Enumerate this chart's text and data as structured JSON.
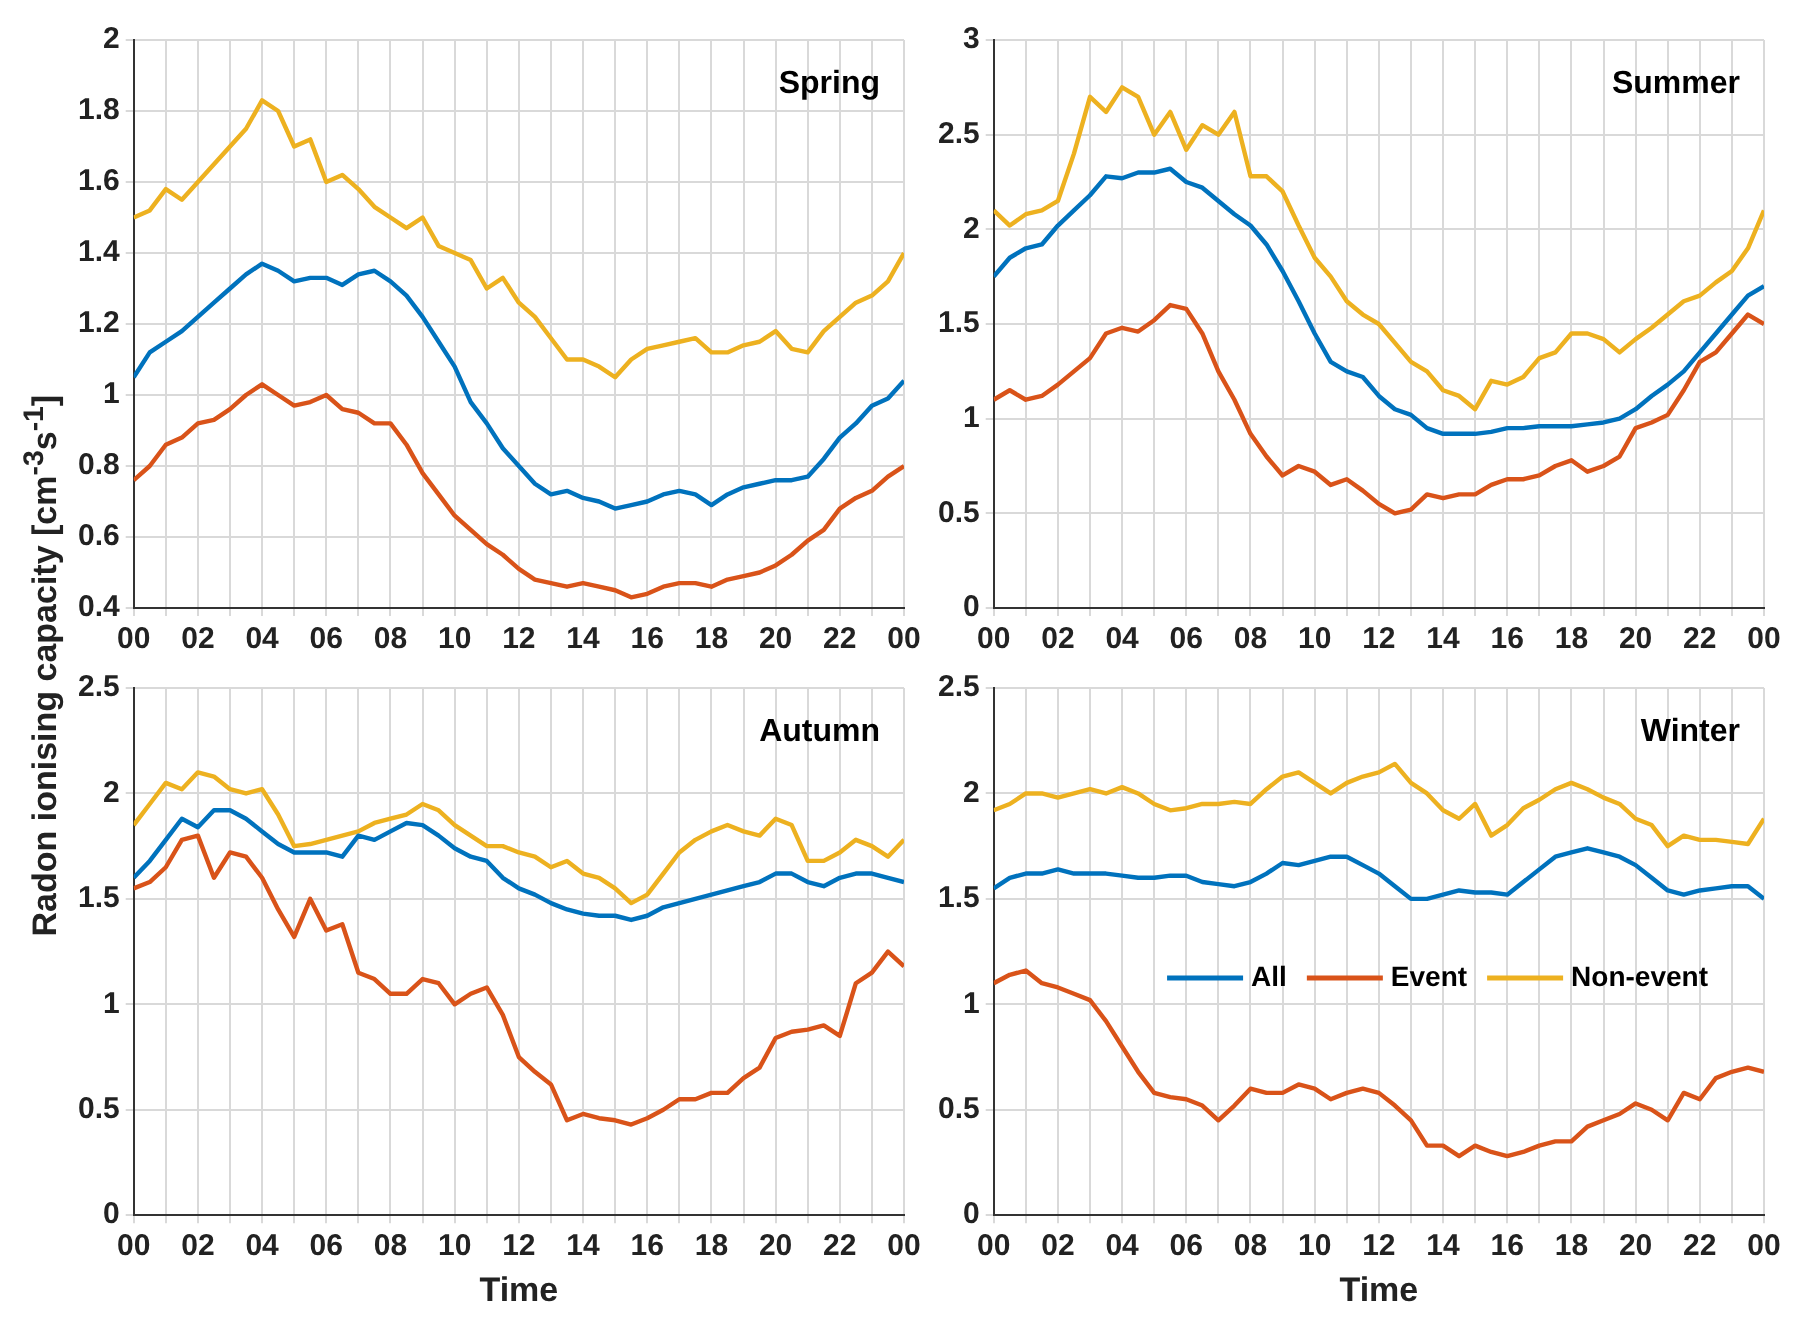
{
  "chart_data": [
    {
      "type": "line",
      "title": "Spring",
      "ylabel": "Radon ionising capacity [cm$^{-3}$s$^{-1}$]",
      "grid": true,
      "marker": "none",
      "x": [
        0,
        0.5,
        1,
        1.5,
        2,
        2.5,
        3,
        3.5,
        4,
        4.5,
        5,
        5.5,
        6,
        6.5,
        7,
        7.5,
        8,
        8.5,
        9,
        9.5,
        10,
        10.5,
        11,
        11.5,
        12,
        12.5,
        13,
        13.5,
        14,
        14.5,
        15,
        15.5,
        16,
        16.5,
        17,
        17.5,
        18,
        18.5,
        19,
        19.5,
        20,
        20.5,
        21,
        21.5,
        22,
        22.5,
        23,
        23.5,
        24
      ],
      "xlim": [
        0,
        24
      ],
      "xticks": [
        {
          "value": 0,
          "label": "00"
        },
        {
          "value": 1,
          "label": null
        },
        {
          "value": 2,
          "label": "02"
        },
        {
          "value": 3,
          "label": null
        },
        {
          "value": 4,
          "label": "04"
        },
        {
          "value": 5,
          "label": null
        },
        {
          "value": 6,
          "label": "06"
        },
        {
          "value": 7,
          "label": null
        },
        {
          "value": 8,
          "label": "08"
        },
        {
          "value": 9,
          "label": null
        },
        {
          "value": 10,
          "label": "10"
        },
        {
          "value": 11,
          "label": null
        },
        {
          "value": 12,
          "label": "12"
        },
        {
          "value": 13,
          "label": null
        },
        {
          "value": 14,
          "label": "14"
        },
        {
          "value": 15,
          "label": null
        },
        {
          "value": 16,
          "label": "16"
        },
        {
          "value": 17,
          "label": null
        },
        {
          "value": 18,
          "label": "18"
        },
        {
          "value": 19,
          "label": null
        },
        {
          "value": 20,
          "label": "20"
        },
        {
          "value": 21,
          "label": null
        },
        {
          "value": 22,
          "label": "22"
        },
        {
          "value": 23,
          "label": null
        },
        {
          "value": 24,
          "label": "00"
        }
      ],
      "ylim": [
        0.4,
        2
      ],
      "yticks": [
        0.4,
        0.6,
        0.8,
        1,
        1.2,
        1.4,
        1.6,
        1.8,
        2
      ],
      "series": [
        {
          "color": "#0072bd",
          "values": [
            1.05,
            1.12,
            1.15,
            1.18,
            1.22,
            1.26,
            1.3,
            1.34,
            1.37,
            1.35,
            1.32,
            1.33,
            1.33,
            1.31,
            1.34,
            1.35,
            1.32,
            1.28,
            1.22,
            1.15,
            1.08,
            0.98,
            0.92,
            0.85,
            0.8,
            0.75,
            0.72,
            0.73,
            0.71,
            0.7,
            0.68,
            0.69,
            0.7,
            0.72,
            0.73,
            0.72,
            0.69,
            0.72,
            0.74,
            0.75,
            0.76,
            0.76,
            0.77,
            0.82,
            0.88,
            0.92,
            0.97,
            0.99,
            1.04
          ]
        },
        {
          "color": "#d95319",
          "values": [
            0.76,
            0.8,
            0.86,
            0.88,
            0.92,
            0.93,
            0.96,
            1,
            1.03,
            1,
            0.97,
            0.98,
            1,
            0.96,
            0.95,
            0.92,
            0.92,
            0.86,
            0.78,
            0.72,
            0.66,
            0.62,
            0.58,
            0.55,
            0.51,
            0.48,
            0.47,
            0.46,
            0.47,
            0.46,
            0.45,
            0.43,
            0.44,
            0.46,
            0.47,
            0.47,
            0.46,
            0.48,
            0.49,
            0.5,
            0.52,
            0.55,
            0.59,
            0.62,
            0.68,
            0.71,
            0.73,
            0.77,
            0.8
          ]
        },
        {
          "color": "#edb120",
          "values": [
            1.5,
            1.52,
            1.58,
            1.55,
            1.6,
            1.65,
            1.7,
            1.75,
            1.83,
            1.8,
            1.7,
            1.72,
            1.6,
            1.62,
            1.58,
            1.53,
            1.5,
            1.47,
            1.5,
            1.42,
            1.4,
            1.38,
            1.3,
            1.33,
            1.26,
            1.22,
            1.16,
            1.1,
            1.1,
            1.08,
            1.05,
            1.1,
            1.13,
            1.14,
            1.15,
            1.16,
            1.12,
            1.12,
            1.14,
            1.15,
            1.18,
            1.13,
            1.12,
            1.18,
            1.22,
            1.26,
            1.28,
            1.32,
            1.4
          ]
        }
      ]
    },
    {
      "type": "line",
      "title": "Summer",
      "grid": true,
      "marker": "none",
      "x": [
        0,
        0.5,
        1,
        1.5,
        2,
        2.5,
        3,
        3.5,
        4,
        4.5,
        5,
        5.5,
        6,
        6.5,
        7,
        7.5,
        8,
        8.5,
        9,
        9.5,
        10,
        10.5,
        11,
        11.5,
        12,
        12.5,
        13,
        13.5,
        14,
        14.5,
        15,
        15.5,
        16,
        16.5,
        17,
        17.5,
        18,
        18.5,
        19,
        19.5,
        20,
        20.5,
        21,
        21.5,
        22,
        22.5,
        23,
        23.5,
        24
      ],
      "xlim": [
        0,
        24
      ],
      "xticks": [
        {
          "value": 0,
          "label": "00"
        },
        {
          "value": 1,
          "label": null
        },
        {
          "value": 2,
          "label": "02"
        },
        {
          "value": 3,
          "label": null
        },
        {
          "value": 4,
          "label": "04"
        },
        {
          "value": 5,
          "label": null
        },
        {
          "value": 6,
          "label": "06"
        },
        {
          "value": 7,
          "label": null
        },
        {
          "value": 8,
          "label": "08"
        },
        {
          "value": 9,
          "label": null
        },
        {
          "value": 10,
          "label": "10"
        },
        {
          "value": 11,
          "label": null
        },
        {
          "value": 12,
          "label": "12"
        },
        {
          "value": 13,
          "label": null
        },
        {
          "value": 14,
          "label": "14"
        },
        {
          "value": 15,
          "label": null
        },
        {
          "value": 16,
          "label": "16"
        },
        {
          "value": 17,
          "label": null
        },
        {
          "value": 18,
          "label": "18"
        },
        {
          "value": 19,
          "label": null
        },
        {
          "value": 20,
          "label": "20"
        },
        {
          "value": 21,
          "label": null
        },
        {
          "value": 22,
          "label": "22"
        },
        {
          "value": 23,
          "label": null
        },
        {
          "value": 24,
          "label": "00"
        }
      ],
      "ylim": [
        0,
        3
      ],
      "yticks": [
        0,
        0.5,
        1,
        1.5,
        2,
        2.5,
        3
      ],
      "series": [
        {
          "color": "#0072bd",
          "values": [
            1.75,
            1.85,
            1.9,
            1.92,
            2.02,
            2.1,
            2.18,
            2.28,
            2.27,
            2.3,
            2.3,
            2.32,
            2.25,
            2.22,
            2.15,
            2.08,
            2.02,
            1.92,
            1.78,
            1.62,
            1.45,
            1.3,
            1.25,
            1.22,
            1.12,
            1.05,
            1.02,
            0.95,
            0.92,
            0.92,
            0.92,
            0.93,
            0.95,
            0.95,
            0.96,
            0.96,
            0.96,
            0.97,
            0.98,
            1,
            1.05,
            1.12,
            1.18,
            1.25,
            1.35,
            1.45,
            1.55,
            1.65,
            1.7
          ]
        },
        {
          "color": "#d95319",
          "values": [
            1.1,
            1.15,
            1.1,
            1.12,
            1.18,
            1.25,
            1.32,
            1.45,
            1.48,
            1.46,
            1.52,
            1.6,
            1.58,
            1.45,
            1.25,
            1.1,
            0.92,
            0.8,
            0.7,
            0.75,
            0.72,
            0.65,
            0.68,
            0.62,
            0.55,
            0.5,
            0.52,
            0.6,
            0.58,
            0.6,
            0.6,
            0.65,
            0.68,
            0.68,
            0.7,
            0.75,
            0.78,
            0.72,
            0.75,
            0.8,
            0.95,
            0.98,
            1.02,
            1.15,
            1.3,
            1.35,
            1.45,
            1.55,
            1.5
          ]
        },
        {
          "color": "#edb120",
          "values": [
            2.1,
            2.02,
            2.08,
            2.1,
            2.15,
            2.4,
            2.7,
            2.62,
            2.75,
            2.7,
            2.5,
            2.62,
            2.42,
            2.55,
            2.5,
            2.62,
            2.28,
            2.28,
            2.2,
            2.02,
            1.85,
            1.75,
            1.62,
            1.55,
            1.5,
            1.4,
            1.3,
            1.25,
            1.15,
            1.12,
            1.05,
            1.2,
            1.18,
            1.22,
            1.32,
            1.35,
            1.45,
            1.45,
            1.42,
            1.35,
            1.42,
            1.48,
            1.55,
            1.62,
            1.65,
            1.72,
            1.78,
            1.9,
            2.1
          ]
        }
      ]
    },
    {
      "type": "line",
      "title": "Autumn",
      "xlabel": "Time",
      "grid": true,
      "marker": "none",
      "x": [
        0,
        0.5,
        1,
        1.5,
        2,
        2.5,
        3,
        3.5,
        4,
        4.5,
        5,
        5.5,
        6,
        6.5,
        7,
        7.5,
        8,
        8.5,
        9,
        9.5,
        10,
        10.5,
        11,
        11.5,
        12,
        12.5,
        13,
        13.5,
        14,
        14.5,
        15,
        15.5,
        16,
        16.5,
        17,
        17.5,
        18,
        18.5,
        19,
        19.5,
        20,
        20.5,
        21,
        21.5,
        22,
        22.5,
        23,
        23.5,
        24
      ],
      "xlim": [
        0,
        24
      ],
      "xticks": [
        {
          "value": 0,
          "label": "00"
        },
        {
          "value": 1,
          "label": null
        },
        {
          "value": 2,
          "label": "02"
        },
        {
          "value": 3,
          "label": null
        },
        {
          "value": 4,
          "label": "04"
        },
        {
          "value": 5,
          "label": null
        },
        {
          "value": 6,
          "label": "06"
        },
        {
          "value": 7,
          "label": null
        },
        {
          "value": 8,
          "label": "08"
        },
        {
          "value": 9,
          "label": null
        },
        {
          "value": 10,
          "label": "10"
        },
        {
          "value": 11,
          "label": null
        },
        {
          "value": 12,
          "label": "12"
        },
        {
          "value": 13,
          "label": null
        },
        {
          "value": 14,
          "label": "14"
        },
        {
          "value": 15,
          "label": null
        },
        {
          "value": 16,
          "label": "16"
        },
        {
          "value": 17,
          "label": null
        },
        {
          "value": 18,
          "label": "18"
        },
        {
          "value": 19,
          "label": null
        },
        {
          "value": 20,
          "label": "20"
        },
        {
          "value": 21,
          "label": null
        },
        {
          "value": 22,
          "label": "22"
        },
        {
          "value": 23,
          "label": null
        },
        {
          "value": 24,
          "label": "00"
        }
      ],
      "ylim": [
        0,
        2.5
      ],
      "yticks": [
        0,
        0.5,
        1,
        1.5,
        2,
        2.5
      ],
      "series": [
        {
          "color": "#0072bd",
          "values": [
            1.6,
            1.68,
            1.78,
            1.88,
            1.84,
            1.92,
            1.92,
            1.88,
            1.82,
            1.76,
            1.72,
            1.72,
            1.72,
            1.7,
            1.8,
            1.78,
            1.82,
            1.86,
            1.85,
            1.8,
            1.74,
            1.7,
            1.68,
            1.6,
            1.55,
            1.52,
            1.48,
            1.45,
            1.43,
            1.42,
            1.42,
            1.4,
            1.42,
            1.46,
            1.48,
            1.5,
            1.52,
            1.54,
            1.56,
            1.58,
            1.62,
            1.62,
            1.58,
            1.56,
            1.6,
            1.62,
            1.62,
            1.6,
            1.58
          ]
        },
        {
          "color": "#d95319",
          "values": [
            1.55,
            1.58,
            1.65,
            1.78,
            1.8,
            1.6,
            1.72,
            1.7,
            1.6,
            1.45,
            1.32,
            1.5,
            1.35,
            1.38,
            1.15,
            1.12,
            1.05,
            1.05,
            1.12,
            1.1,
            1,
            1.05,
            1.08,
            0.95,
            0.75,
            0.68,
            0.62,
            0.45,
            0.48,
            0.46,
            0.45,
            0.43,
            0.46,
            0.5,
            0.55,
            0.55,
            0.58,
            0.58,
            0.65,
            0.7,
            0.84,
            0.87,
            0.88,
            0.9,
            0.85,
            1.1,
            1.15,
            1.25,
            1.18
          ]
        },
        {
          "color": "#edb120",
          "values": [
            1.85,
            1.95,
            2.05,
            2.02,
            2.1,
            2.08,
            2.02,
            2,
            2.02,
            1.9,
            1.75,
            1.76,
            1.78,
            1.8,
            1.82,
            1.86,
            1.88,
            1.9,
            1.95,
            1.92,
            1.85,
            1.8,
            1.75,
            1.75,
            1.72,
            1.7,
            1.65,
            1.68,
            1.62,
            1.6,
            1.55,
            1.48,
            1.52,
            1.62,
            1.72,
            1.78,
            1.82,
            1.85,
            1.82,
            1.8,
            1.88,
            1.85,
            1.68,
            1.68,
            1.72,
            1.78,
            1.75,
            1.7,
            1.78
          ]
        }
      ]
    },
    {
      "type": "line",
      "title": "Winter",
      "xlabel": "Time",
      "grid": true,
      "marker": "none",
      "legend": "center right",
      "x": [
        0,
        0.5,
        1,
        1.5,
        2,
        2.5,
        3,
        3.5,
        4,
        4.5,
        5,
        5.5,
        6,
        6.5,
        7,
        7.5,
        8,
        8.5,
        9,
        9.5,
        10,
        10.5,
        11,
        11.5,
        12,
        12.5,
        13,
        13.5,
        14,
        14.5,
        15,
        15.5,
        16,
        16.5,
        17,
        17.5,
        18,
        18.5,
        19,
        19.5,
        20,
        20.5,
        21,
        21.5,
        22,
        22.5,
        23,
        23.5,
        24
      ],
      "xlim": [
        0,
        24
      ],
      "xticks": [
        {
          "value": 0,
          "label": "00"
        },
        {
          "value": 1,
          "label": null
        },
        {
          "value": 2,
          "label": "02"
        },
        {
          "value": 3,
          "label": null
        },
        {
          "value": 4,
          "label": "04"
        },
        {
          "value": 5,
          "label": null
        },
        {
          "value": 6,
          "label": "06"
        },
        {
          "value": 7,
          "label": null
        },
        {
          "value": 8,
          "label": "08"
        },
        {
          "value": 9,
          "label": null
        },
        {
          "value": 10,
          "label": "10"
        },
        {
          "value": 11,
          "label": null
        },
        {
          "value": 12,
          "label": "12"
        },
        {
          "value": 13,
          "label": null
        },
        {
          "value": 14,
          "label": "14"
        },
        {
          "value": 15,
          "label": null
        },
        {
          "value": 16,
          "label": "16"
        },
        {
          "value": 17,
          "label": null
        },
        {
          "value": 18,
          "label": "18"
        },
        {
          "value": 19,
          "label": null
        },
        {
          "value": 20,
          "label": "20"
        },
        {
          "value": 21,
          "label": null
        },
        {
          "value": 22,
          "label": "22"
        },
        {
          "value": 23,
          "label": null
        },
        {
          "value": 24,
          "label": "00"
        }
      ],
      "ylim": [
        0,
        2.5
      ],
      "yticks": [
        0,
        0.5,
        1,
        1.5,
        2,
        2.5
      ],
      "series": [
        {
          "name": "All",
          "color": "#0072bd",
          "values": [
            1.55,
            1.6,
            1.62,
            1.62,
            1.64,
            1.62,
            1.62,
            1.62,
            1.61,
            1.6,
            1.6,
            1.61,
            1.61,
            1.58,
            1.57,
            1.56,
            1.58,
            1.62,
            1.67,
            1.66,
            1.68,
            1.7,
            1.7,
            1.66,
            1.62,
            1.56,
            1.5,
            1.5,
            1.52,
            1.54,
            1.53,
            1.53,
            1.52,
            1.58,
            1.64,
            1.7,
            1.72,
            1.74,
            1.72,
            1.7,
            1.66,
            1.6,
            1.54,
            1.52,
            1.54,
            1.55,
            1.56,
            1.56,
            1.5
          ]
        },
        {
          "name": "Event",
          "color": "#d95319",
          "values": [
            1.1,
            1.14,
            1.16,
            1.1,
            1.08,
            1.05,
            1.02,
            0.92,
            0.8,
            0.68,
            0.58,
            0.56,
            0.55,
            0.52,
            0.45,
            0.52,
            0.6,
            0.58,
            0.58,
            0.62,
            0.6,
            0.55,
            0.58,
            0.6,
            0.58,
            0.52,
            0.45,
            0.33,
            0.33,
            0.28,
            0.33,
            0.3,
            0.28,
            0.3,
            0.33,
            0.35,
            0.35,
            0.42,
            0.45,
            0.48,
            0.53,
            0.5,
            0.45,
            0.58,
            0.55,
            0.65,
            0.68,
            0.7,
            0.68
          ]
        },
        {
          "name": "Non-event",
          "color": "#edb120",
          "values": [
            1.92,
            1.95,
            2,
            2,
            1.98,
            2,
            2.02,
            2,
            2.03,
            2,
            1.95,
            1.92,
            1.93,
            1.95,
            1.95,
            1.96,
            1.95,
            2.02,
            2.08,
            2.1,
            2.05,
            2,
            2.05,
            2.08,
            2.1,
            2.14,
            2.05,
            2,
            1.92,
            1.88,
            1.95,
            1.8,
            1.85,
            1.93,
            1.97,
            2.02,
            2.05,
            2.02,
            1.98,
            1.95,
            1.88,
            1.85,
            1.75,
            1.8,
            1.78,
            1.78,
            1.77,
            1.76,
            1.88
          ]
        }
      ]
    }
  ]
}
